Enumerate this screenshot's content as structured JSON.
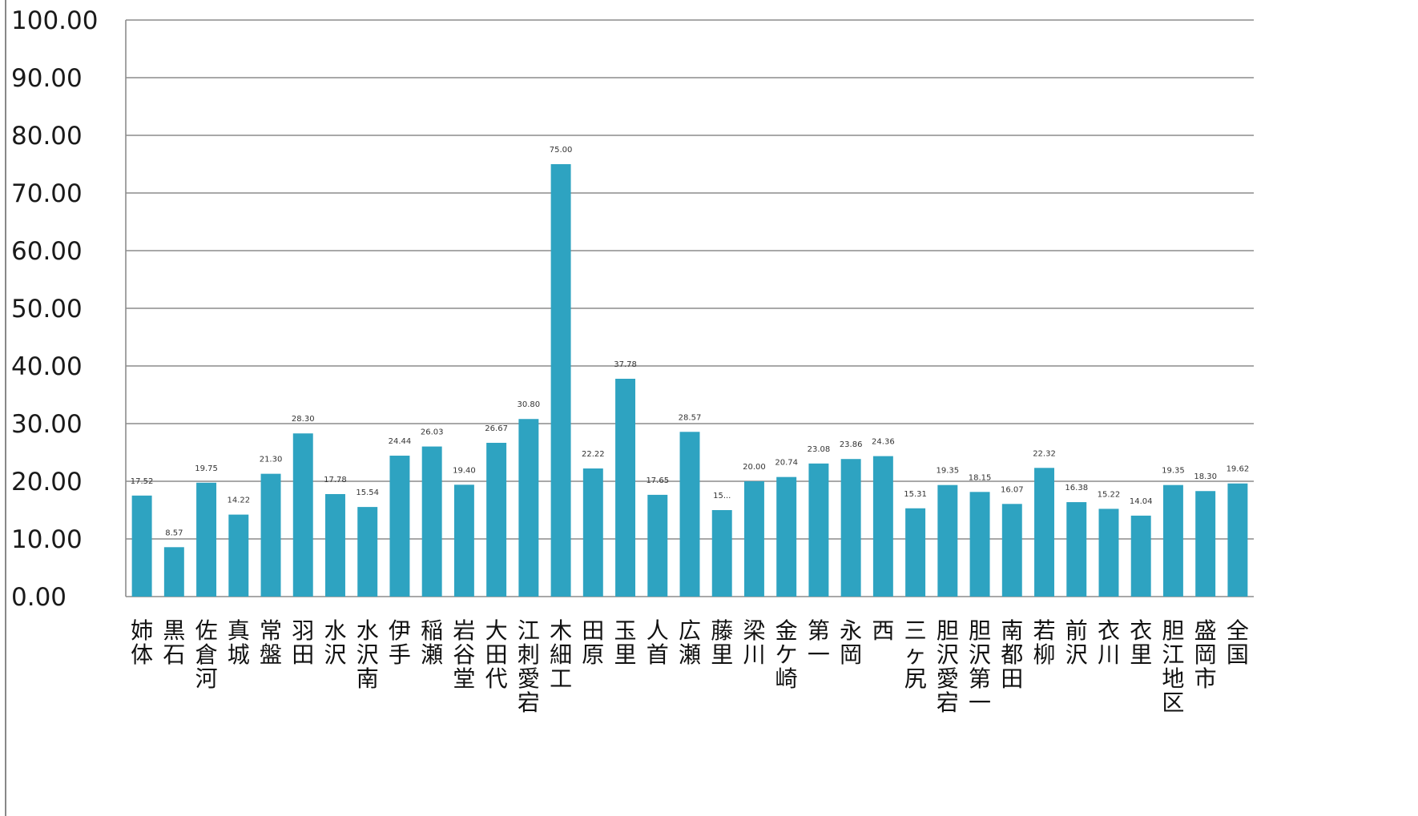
{
  "chart_data": {
    "type": "bar",
    "title": "",
    "xlabel": "",
    "ylabel": "",
    "ylim": [
      0,
      100
    ],
    "y_ticks": [
      "0.00",
      "10.00",
      "20.00",
      "30.00",
      "40.00",
      "50.00",
      "60.00",
      "70.00",
      "80.00",
      "90.00",
      "100.00"
    ],
    "grid": true,
    "bar_color": "#2ea3c1",
    "categories": [
      "姉体",
      "黒石",
      "佐倉河",
      "真城",
      "常盤",
      "羽田",
      "水沢",
      "水沢南",
      "伊手",
      "稲瀬",
      "岩谷堂",
      "大田代",
      "江刺愛宕",
      "木細工",
      "田原",
      "玉里",
      "人首",
      "広瀬",
      "藤里",
      "梁川",
      "金ケ崎",
      "第一",
      "永岡",
      "西",
      "三ヶ尻",
      "胆沢愛宕",
      "胆沢第一",
      "南都田",
      "若柳",
      "前沢",
      "衣川",
      "衣里",
      "胆江地区",
      "盛岡市",
      "全国"
    ],
    "values": [
      17.52,
      8.57,
      19.75,
      14.22,
      21.3,
      28.3,
      17.78,
      15.54,
      24.44,
      26.03,
      19.4,
      26.67,
      30.8,
      75.0,
      22.22,
      37.78,
      17.65,
      28.57,
      15.0,
      20.0,
      20.74,
      23.08,
      23.86,
      24.36,
      15.31,
      19.35,
      18.15,
      16.07,
      22.32,
      16.38,
      15.22,
      14.04,
      19.35,
      18.3,
      19.62
    ],
    "data_labels": [
      "17.52",
      "8.57",
      "19.75",
      "14.22",
      "21.30",
      "28.30",
      "17.78",
      "15.54",
      "24.44",
      "26.03",
      "19.40",
      "26.67",
      "30.80",
      "75.00",
      "22.22",
      "37.78",
      "17.65",
      "28.57",
      "15...",
      "20.00",
      "20.74",
      "23.08",
      "23.86",
      "24.36",
      "15.31",
      "19.35",
      "18.15",
      "16.07",
      "22.32",
      "16.38",
      "15.22",
      "14.04",
      "19.35",
      "18.30",
      "19.62"
    ]
  }
}
